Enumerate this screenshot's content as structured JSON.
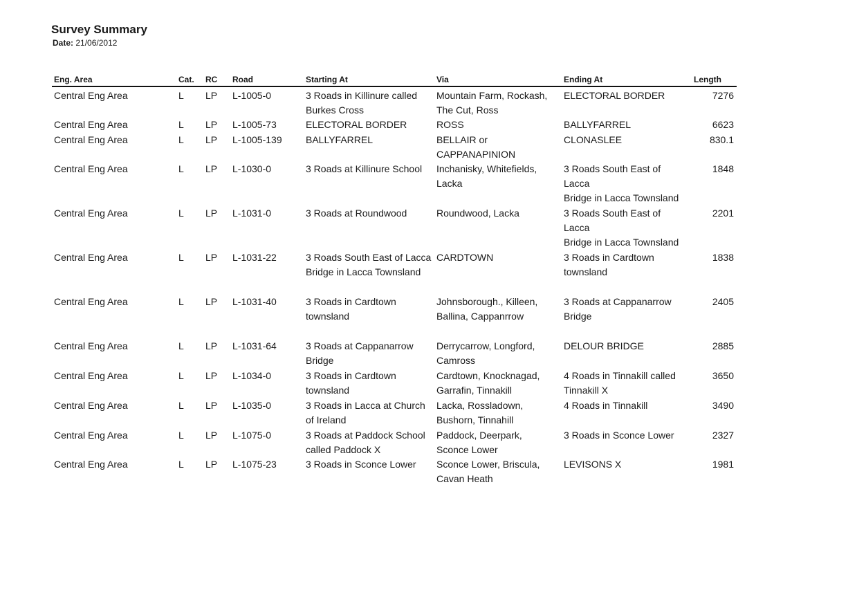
{
  "title": "Survey Summary",
  "date_label": "Date:",
  "date_value": "21/06/2012",
  "columns": [
    "Eng. Area",
    "Cat.",
    "RC",
    "Road",
    "Starting At",
    "Via",
    "Ending At",
    "Length"
  ],
  "rows": [
    [
      "Central Eng Area",
      "L",
      "LP",
      "L-1005-0",
      "3 Roads in Killinure called\nBurkes Cross",
      "Mountain Farm, Rockash,\nThe Cut, Ross",
      "ELECTORAL BORDER",
      "7276"
    ],
    [
      "Central Eng Area",
      "L",
      "LP",
      "L-1005-73",
      "ELECTORAL BORDER",
      "ROSS",
      "BALLYFARREL",
      "6623"
    ],
    [
      "Central Eng Area",
      "L",
      "LP",
      "L-1005-139",
      "BALLYFARREL",
      "BELLAIR or\nCAPPANAPINION",
      "CLONASLEE",
      "830.1"
    ],
    [
      "Central Eng Area",
      "L",
      "LP",
      "L-1030-0",
      "3 Roads at Killinure School",
      "Inchanisky, Whitefields,\nLacka",
      "3 Roads South East of Lacca\nBridge in Lacca Townsland",
      "1848"
    ],
    [
      "Central Eng Area",
      "L",
      "LP",
      "L-1031-0",
      "3 Roads at Roundwood",
      "Roundwood, Lacka",
      "3 Roads South East of Lacca\nBridge in Lacca Townsland",
      "2201"
    ],
    [
      "Central Eng Area",
      "L",
      "LP",
      "L-1031-22",
      "3 Roads South East of Lacca\nBridge in Lacca Townsland",
      "CARDTOWN",
      "3 Roads in Cardtown\ntownsland",
      "1838"
    ],
    [
      "Central Eng Area",
      "L",
      "LP",
      "L-1031-40",
      "3 Roads in Cardtown\ntownsland",
      "Johnsborough., Killeen,\nBallina, Cappanrrow",
      "3 Roads at Cappanarrow\nBridge",
      "2405"
    ],
    [
      "Central Eng Area",
      "L",
      "LP",
      "L-1031-64",
      "3 Roads at Cappanarrow\nBridge",
      "Derrycarrow, Longford,\nCamross",
      "DELOUR BRIDGE",
      "2885"
    ],
    [
      "Central Eng Area",
      "L",
      "LP",
      "L-1034-0",
      "3 Roads in Cardtown\ntownsland",
      "Cardtown, Knocknagad,\nGarrafin, Tinnakill",
      "4 Roads in Tinnakill called\nTinnakill X",
      "3650"
    ],
    [
      "Central Eng Area",
      "L",
      "LP",
      "L-1035-0",
      "3 Roads in Lacca at Church\nof Ireland",
      "Lacka, Rossladown,\nBushorn, Tinnahill",
      "4 Roads in Tinnakill",
      "3490"
    ],
    [
      "Central Eng Area",
      "L",
      "LP",
      "L-1075-0",
      "3 Roads at Paddock School\ncalled Paddock X",
      "Paddock, Deerpark,\nSconce Lower",
      "3 Roads in Sconce Lower",
      "2327"
    ],
    [
      "Central Eng Area",
      "L",
      "LP",
      "L-1075-23",
      "3 Roads in Sconce Lower",
      "Sconce Lower, Briscula,\nCavan Heath",
      "LEVISONS X",
      "1981"
    ]
  ]
}
